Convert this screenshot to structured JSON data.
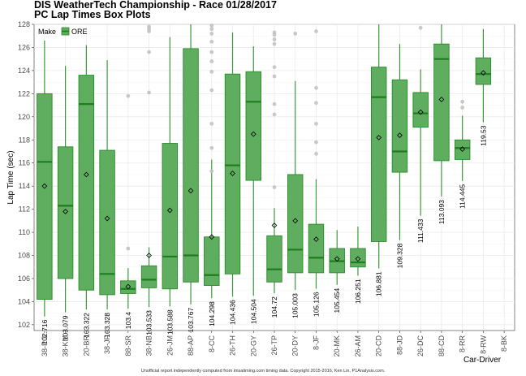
{
  "chart_data": {
    "type": "box",
    "title": "DIS WeatherTech Championship - Race 01/28/2017",
    "subtitle": "PC Lap Times Box Plots",
    "xlabel": "Car-Driver",
    "ylabel": "Lap Time (sec)",
    "ylim": [
      101.5,
      128
    ],
    "yticks": [
      102,
      104,
      106,
      108,
      110,
      112,
      114,
      116,
      118,
      120,
      122,
      124,
      126,
      128
    ],
    "grid": true,
    "legend": {
      "title": "Make",
      "entries": [
        "ORE"
      ],
      "position": "top-left"
    },
    "colors": {
      "fill": "#5fad5f",
      "edge": "#2a8b2a",
      "median": "#1e7d1e",
      "whisker": "#3a9a3a",
      "outlier": "#c0c0c0",
      "grid": "#ebebeb"
    },
    "footnote": "Unofficial report independently computed from imsatiming.com timing data. Copyright 2015-2016, Ken Lin, P1Analysis.com.",
    "boxes": [
      {
        "category": "38-PO",
        "min": 102.716,
        "q1": 104.2,
        "median": 116.1,
        "q3": 122.0,
        "max": 126.6,
        "mean": 114.0,
        "min_label": "102.716",
        "outliers": []
      },
      {
        "category": "38-KM",
        "min": 103.079,
        "q1": 106.0,
        "median": 112.3,
        "q3": 117.4,
        "max": 124.4,
        "mean": 111.8,
        "min_label": "103.079",
        "outliers": []
      },
      {
        "category": "20-BR",
        "min": 103.322,
        "q1": 105.0,
        "median": 121.1,
        "q3": 123.6,
        "max": 126.2,
        "mean": 115.0,
        "min_label": "103.322",
        "outliers": []
      },
      {
        "category": "38-JF",
        "min": 103.328,
        "q1": 104.6,
        "median": 106.4,
        "q3": 117.1,
        "max": 124.9,
        "mean": 111.2,
        "min_label": "103.328",
        "outliers": []
      },
      {
        "category": "88-SR",
        "min": 103.4,
        "q1": 104.7,
        "median": 105.1,
        "q3": 105.8,
        "max": 106.9,
        "mean": 105.3,
        "min_label": "103.4",
        "outliers": [
          121.8,
          108.6
        ]
      },
      {
        "category": "38-NB",
        "min": 103.533,
        "q1": 105.2,
        "median": 105.9,
        "q3": 107.1,
        "max": 108.7,
        "mean": 108.0,
        "min_label": "103.533",
        "outliers": [
          127.8,
          127.6,
          127.4,
          125.6,
          122.1
        ]
      },
      {
        "category": "26-JM",
        "min": 103.588,
        "q1": 105.1,
        "median": 107.9,
        "q3": 117.7,
        "max": 126.9,
        "mean": 111.9,
        "min_label": "103.588",
        "outliers": []
      },
      {
        "category": "88-AP",
        "min": 103.767,
        "q1": 105.7,
        "median": 108.0,
        "q3": 125.9,
        "max": 128.0,
        "mean": 113.6,
        "min_label": "103.767",
        "outliers": []
      },
      {
        "category": "8-CC",
        "min": 104.298,
        "q1": 105.4,
        "median": 106.3,
        "q3": 109.6,
        "max": 116.3,
        "mean": 109.6,
        "min_label": "104.298",
        "outliers": [
          127.9,
          127.6,
          127.2,
          126.5,
          125.6,
          124.8,
          123.9,
          122.3,
          119.4,
          117.3,
          115.3
        ]
      },
      {
        "category": "26-TH",
        "min": 104.436,
        "q1": 106.4,
        "median": 115.8,
        "q3": 123.7,
        "max": 127.3,
        "mean": 115.1,
        "min_label": "104.436",
        "outliers": []
      },
      {
        "category": "20-GY",
        "min": 104.504,
        "q1": 114.5,
        "median": 121.3,
        "q3": 123.9,
        "max": 126.1,
        "mean": 118.5,
        "min_label": "104.504",
        "outliers": []
      },
      {
        "category": "26-TP",
        "min": 104.72,
        "q1": 105.7,
        "median": 106.8,
        "q3": 109.7,
        "max": 112.1,
        "mean": 110.6,
        "min_label": "104.72",
        "outliers": [
          127.3,
          127.1,
          126.7,
          126.3,
          124.3,
          123.5,
          121.1,
          120.2,
          113.9
        ]
      },
      {
        "category": "20-DY",
        "min": 105.003,
        "q1": 106.5,
        "median": 108.5,
        "q3": 115.0,
        "max": 123.1,
        "mean": 111.0,
        "min_label": "105.003",
        "outliers": [
          127.2
        ]
      },
      {
        "category": "8-JF",
        "min": 105.126,
        "q1": 106.5,
        "median": 107.8,
        "q3": 110.7,
        "max": 114.6,
        "mean": 109.4,
        "min_label": "105.126",
        "outliers": [
          127.4,
          122.5,
          121.2,
          119.4,
          117.8,
          116.8
        ]
      },
      {
        "category": "20-MK",
        "min": 105.454,
        "q1": 106.5,
        "median": 107.5,
        "q3": 108.6,
        "max": 110.2,
        "mean": 107.7,
        "min_label": "105.454",
        "outliers": []
      },
      {
        "category": "26-AM",
        "min": 106.251,
        "q1": 107.0,
        "median": 107.4,
        "q3": 108.6,
        "max": 110.5,
        "mean": 107.7,
        "min_label": "106.251",
        "outliers": []
      },
      {
        "category": "20-CD",
        "min": 106.881,
        "q1": 109.2,
        "median": 121.7,
        "q3": 124.3,
        "max": 128.0,
        "mean": 118.2,
        "min_label": "106.881",
        "outliers": []
      },
      {
        "category": "88-JD",
        "min": 109.328,
        "q1": 115.2,
        "median": 117.0,
        "q3": 123.2,
        "max": 126.3,
        "mean": 118.4,
        "min_label": "109.328",
        "outliers": []
      },
      {
        "category": "26-DC",
        "min": 111.433,
        "q1": 119.1,
        "median": 120.3,
        "q3": 122.1,
        "max": 124.1,
        "mean": 120.4,
        "min_label": "111.433",
        "outliers": [
          127.7
        ]
      },
      {
        "category": "88-CD",
        "min": 113.093,
        "q1": 116.2,
        "median": 125.0,
        "q3": 126.3,
        "max": 128.0,
        "mean": 121.5,
        "min_label": "113.093",
        "outliers": []
      },
      {
        "category": "8-RR",
        "min": 114.445,
        "q1": 116.3,
        "median": 117.3,
        "q3": 118.0,
        "max": 120.1,
        "mean": 117.2,
        "min_label": "114.445",
        "outliers": [
          121.3,
          120.8
        ]
      },
      {
        "category": "8-RW",
        "min": 119.53,
        "q1": 122.8,
        "median": 123.7,
        "q3": 125.1,
        "max": 127.6,
        "mean": 123.8,
        "min_label": "119.53",
        "outliers": []
      },
      {
        "category": "8-BK",
        "min": null,
        "q1": null,
        "median": null,
        "q3": null,
        "max": null,
        "mean": null,
        "min_label": "",
        "outliers": []
      }
    ]
  }
}
